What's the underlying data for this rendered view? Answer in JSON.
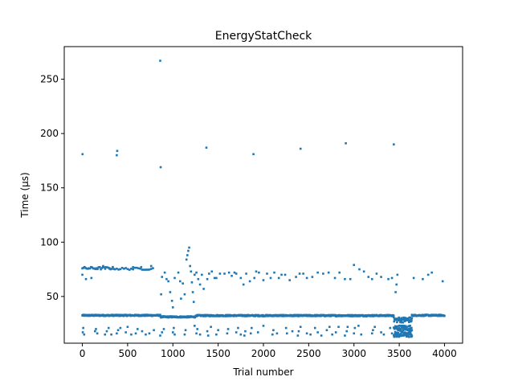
{
  "chart_data": {
    "type": "scatter",
    "title": "EnergyStatCheck",
    "xlabel": "Trial number",
    "ylabel": "Time (µs)",
    "xlim": [
      -200,
      4200
    ],
    "ylim": [
      7,
      280
    ],
    "xticks": [
      0,
      500,
      1000,
      1500,
      2000,
      2500,
      3000,
      3500,
      4000
    ],
    "yticks": [
      50,
      100,
      150,
      200,
      250
    ],
    "grid": false,
    "legend": "none",
    "marker_color": "#1f77b4",
    "series": [
      {
        "bands": [
          {
            "x_start": 0,
            "x_end": 860,
            "x_step": 4,
            "y": 32.6,
            "jitter": 0.6
          },
          {
            "x_start": 864,
            "x_end": 1250,
            "x_step": 4,
            "y": 31.2,
            "jitter": 0.6
          },
          {
            "x_start": 1254,
            "x_end": 3440,
            "x_step": 4,
            "y": 32.4,
            "jitter": 0.6
          },
          {
            "x_start": 3640,
            "x_end": 4000,
            "x_step": 4,
            "y": 32.6,
            "jitter": 0.6
          },
          {
            "x_start": 3440,
            "x_end": 3640,
            "x_step": 4,
            "y": 28.5,
            "jitter": 2.5
          },
          {
            "x_start": 3440,
            "x_end": 3640,
            "x_step": 4,
            "y": 21.0,
            "jitter": 2.5
          },
          {
            "x_start": 3440,
            "x_end": 3640,
            "x_step": 4,
            "y": 15.0,
            "jitter": 2.5
          },
          {
            "x_start": 0,
            "x_end": 360,
            "x_step": 12,
            "y": 76,
            "jitter": 1.2
          },
          {
            "x_start": 380,
            "x_end": 780,
            "x_step": 20,
            "y": 75.5,
            "jitter": 1.0
          }
        ],
        "points": [
          [
            2,
            181
          ],
          [
            380,
            180
          ],
          [
            385,
            184
          ],
          [
            860,
            267
          ],
          [
            865,
            169
          ],
          [
            1370,
            187
          ],
          [
            1890,
            181
          ],
          [
            2410,
            186
          ],
          [
            2910,
            191
          ],
          [
            3440,
            190
          ],
          [
            0,
            70
          ],
          [
            40,
            66
          ],
          [
            100,
            67
          ],
          [
            160,
            76
          ],
          [
            230,
            78
          ],
          [
            300,
            76
          ],
          [
            560,
            77
          ],
          [
            650,
            77
          ],
          [
            760,
            78
          ],
          [
            870,
            52
          ],
          [
            880,
            68
          ],
          [
            910,
            72
          ],
          [
            930,
            66
          ],
          [
            950,
            64
          ],
          [
            970,
            54
          ],
          [
            990,
            46
          ],
          [
            1000,
            40
          ],
          [
            1020,
            67
          ],
          [
            1060,
            72
          ],
          [
            1080,
            64
          ],
          [
            1090,
            48
          ],
          [
            1110,
            62
          ],
          [
            1130,
            52
          ],
          [
            1150,
            84
          ],
          [
            1160,
            88
          ],
          [
            1170,
            92
          ],
          [
            1180,
            95
          ],
          [
            1190,
            78
          ],
          [
            1200,
            73
          ],
          [
            1210,
            63
          ],
          [
            1220,
            54
          ],
          [
            1230,
            45
          ],
          [
            1240,
            70
          ],
          [
            1260,
            72
          ],
          [
            1280,
            66
          ],
          [
            1300,
            61
          ],
          [
            1320,
            70
          ],
          [
            1340,
            57
          ],
          [
            1380,
            66
          ],
          [
            1400,
            71
          ],
          [
            1430,
            73
          ],
          [
            1460,
            67
          ],
          [
            1480,
            67
          ],
          [
            1520,
            71
          ],
          [
            1570,
            71
          ],
          [
            1620,
            72
          ],
          [
            1650,
            69
          ],
          [
            1680,
            72
          ],
          [
            1700,
            71
          ],
          [
            1750,
            67
          ],
          [
            1780,
            61
          ],
          [
            1810,
            71
          ],
          [
            1850,
            64
          ],
          [
            1900,
            67
          ],
          [
            1920,
            73
          ],
          [
            1950,
            72
          ],
          [
            2000,
            65
          ],
          [
            2040,
            71
          ],
          [
            2080,
            67
          ],
          [
            2120,
            72
          ],
          [
            2170,
            67
          ],
          [
            2200,
            70
          ],
          [
            2240,
            70
          ],
          [
            2290,
            65
          ],
          [
            2360,
            68
          ],
          [
            2400,
            71
          ],
          [
            2440,
            71
          ],
          [
            2480,
            67
          ],
          [
            2540,
            68
          ],
          [
            2600,
            72
          ],
          [
            2660,
            71
          ],
          [
            2720,
            72
          ],
          [
            2790,
            67
          ],
          [
            2840,
            72
          ],
          [
            2900,
            66
          ],
          [
            2960,
            66
          ],
          [
            3000,
            79
          ],
          [
            3060,
            75
          ],
          [
            3110,
            73
          ],
          [
            3160,
            68
          ],
          [
            3200,
            66
          ],
          [
            3250,
            71
          ],
          [
            3300,
            68
          ],
          [
            3380,
            66
          ],
          [
            3420,
            67
          ],
          [
            3460,
            54
          ],
          [
            3470,
            61
          ],
          [
            3480,
            70
          ],
          [
            3660,
            67
          ],
          [
            3760,
            66
          ],
          [
            3820,
            70
          ],
          [
            3860,
            72
          ],
          [
            3980,
            64
          ],
          [
            5,
            17
          ],
          [
            10,
            21
          ],
          [
            20,
            15
          ],
          [
            140,
            18
          ],
          [
            150,
            20
          ],
          [
            165,
            16
          ],
          [
            250,
            15
          ],
          [
            270,
            18
          ],
          [
            290,
            21
          ],
          [
            320,
            15
          ],
          [
            380,
            16
          ],
          [
            395,
            19
          ],
          [
            420,
            21
          ],
          [
            480,
            17
          ],
          [
            500,
            22
          ],
          [
            540,
            15
          ],
          [
            590,
            16
          ],
          [
            610,
            20
          ],
          [
            660,
            18
          ],
          [
            700,
            15
          ],
          [
            740,
            16
          ],
          [
            790,
            19
          ],
          [
            860,
            14
          ],
          [
            880,
            17
          ],
          [
            900,
            20
          ],
          [
            1000,
            17
          ],
          [
            1010,
            21
          ],
          [
            1020,
            15
          ],
          [
            1130,
            15
          ],
          [
            1140,
            19
          ],
          [
            1240,
            23
          ],
          [
            1260,
            16
          ],
          [
            1270,
            20
          ],
          [
            1300,
            15
          ],
          [
            1380,
            18
          ],
          [
            1390,
            14
          ],
          [
            1420,
            22
          ],
          [
            1480,
            15
          ],
          [
            1500,
            19
          ],
          [
            1600,
            16
          ],
          [
            1610,
            20
          ],
          [
            1700,
            17
          ],
          [
            1720,
            21
          ],
          [
            1750,
            15
          ],
          [
            1790,
            14
          ],
          [
            1800,
            18
          ],
          [
            1860,
            16
          ],
          [
            1870,
            21
          ],
          [
            1940,
            17
          ],
          [
            2000,
            23
          ],
          [
            2100,
            15
          ],
          [
            2110,
            19
          ],
          [
            2150,
            16
          ],
          [
            2250,
            21
          ],
          [
            2260,
            16
          ],
          [
            2320,
            18
          ],
          [
            2380,
            14
          ],
          [
            2390,
            18
          ],
          [
            2410,
            22
          ],
          [
            2480,
            16
          ],
          [
            2520,
            15
          ],
          [
            2570,
            21
          ],
          [
            2600,
            17
          ],
          [
            2640,
            14
          ],
          [
            2700,
            19
          ],
          [
            2730,
            22
          ],
          [
            2760,
            15
          ],
          [
            2800,
            17
          ],
          [
            2830,
            22
          ],
          [
            2900,
            14
          ],
          [
            2920,
            18
          ],
          [
            2930,
            22
          ],
          [
            3000,
            16
          ],
          [
            3010,
            21
          ],
          [
            3050,
            23
          ],
          [
            3080,
            15
          ],
          [
            3200,
            16
          ],
          [
            3210,
            19
          ],
          [
            3230,
            22
          ],
          [
            3300,
            17
          ],
          [
            3330,
            15
          ],
          [
            3400,
            21
          ],
          [
            3420,
            16
          ]
        ]
      }
    ]
  }
}
